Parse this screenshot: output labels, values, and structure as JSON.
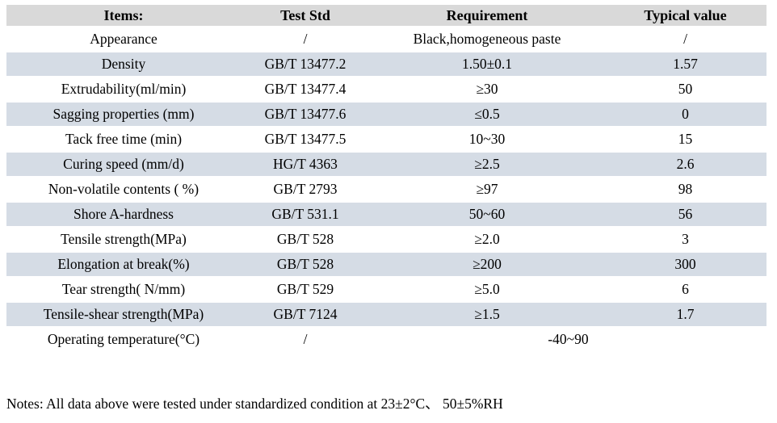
{
  "table": {
    "columns": [
      "Items:",
      "Test Std",
      "Requirement",
      "Typical value"
    ],
    "rows": [
      {
        "item": "Appearance",
        "std": "/",
        "requirement": "Black,homogeneous paste",
        "typical": "/"
      },
      {
        "item": "Density",
        "std": "GB/T 13477.2",
        "requirement": "1.50±0.1",
        "typical": "1.57"
      },
      {
        "item": "Extrudability(ml/min)",
        "std": "GB/T 13477.4",
        "requirement": "≥30",
        "typical": "50"
      },
      {
        "item": "Sagging properties (mm)",
        "std": "GB/T 13477.6",
        "requirement": "≤0.5",
        "typical": "0"
      },
      {
        "item": "Tack free time (min)",
        "std": "GB/T 13477.5",
        "requirement": "10~30",
        "typical": "15"
      },
      {
        "item": "Curing speed (mm/d)",
        "std": "HG/T 4363",
        "requirement": "≥2.5",
        "typical": "2.6"
      },
      {
        "item": "Non-volatile contents ( %)",
        "std": "GB/T 2793",
        "requirement": "≥97",
        "typical": "98"
      },
      {
        "item": "Shore A-hardness",
        "std": "GB/T 531.1",
        "requirement": "50~60",
        "typical": "56"
      },
      {
        "item": "Tensile strength(MPa)",
        "std": "GB/T 528",
        "requirement": "≥2.0",
        "typical": "3"
      },
      {
        "item": "Elongation at break(%)",
        "std": "GB/T 528",
        "requirement": "≥200",
        "typical": "300"
      },
      {
        "item": "Tear strength( N/mm)",
        "std": "GB/T 529",
        "requirement": "≥5.0",
        "typical": "6"
      },
      {
        "item": "Tensile-shear strength(MPa)",
        "std": "GB/T 7124",
        "requirement": "≥1.5",
        "typical": "1.7"
      },
      {
        "item": "Operating temperature(°C)",
        "std": "/",
        "requirement": "-40~90"
      }
    ]
  },
  "notes": "Notes: All data above were tested under standardized condition at 23±2°C、 50±5%RH",
  "colors": {
    "header_bg": "#d9d9d9",
    "stripe_bg": "#d5dce5",
    "row_bg": "#ffffff",
    "text": "#000000"
  }
}
